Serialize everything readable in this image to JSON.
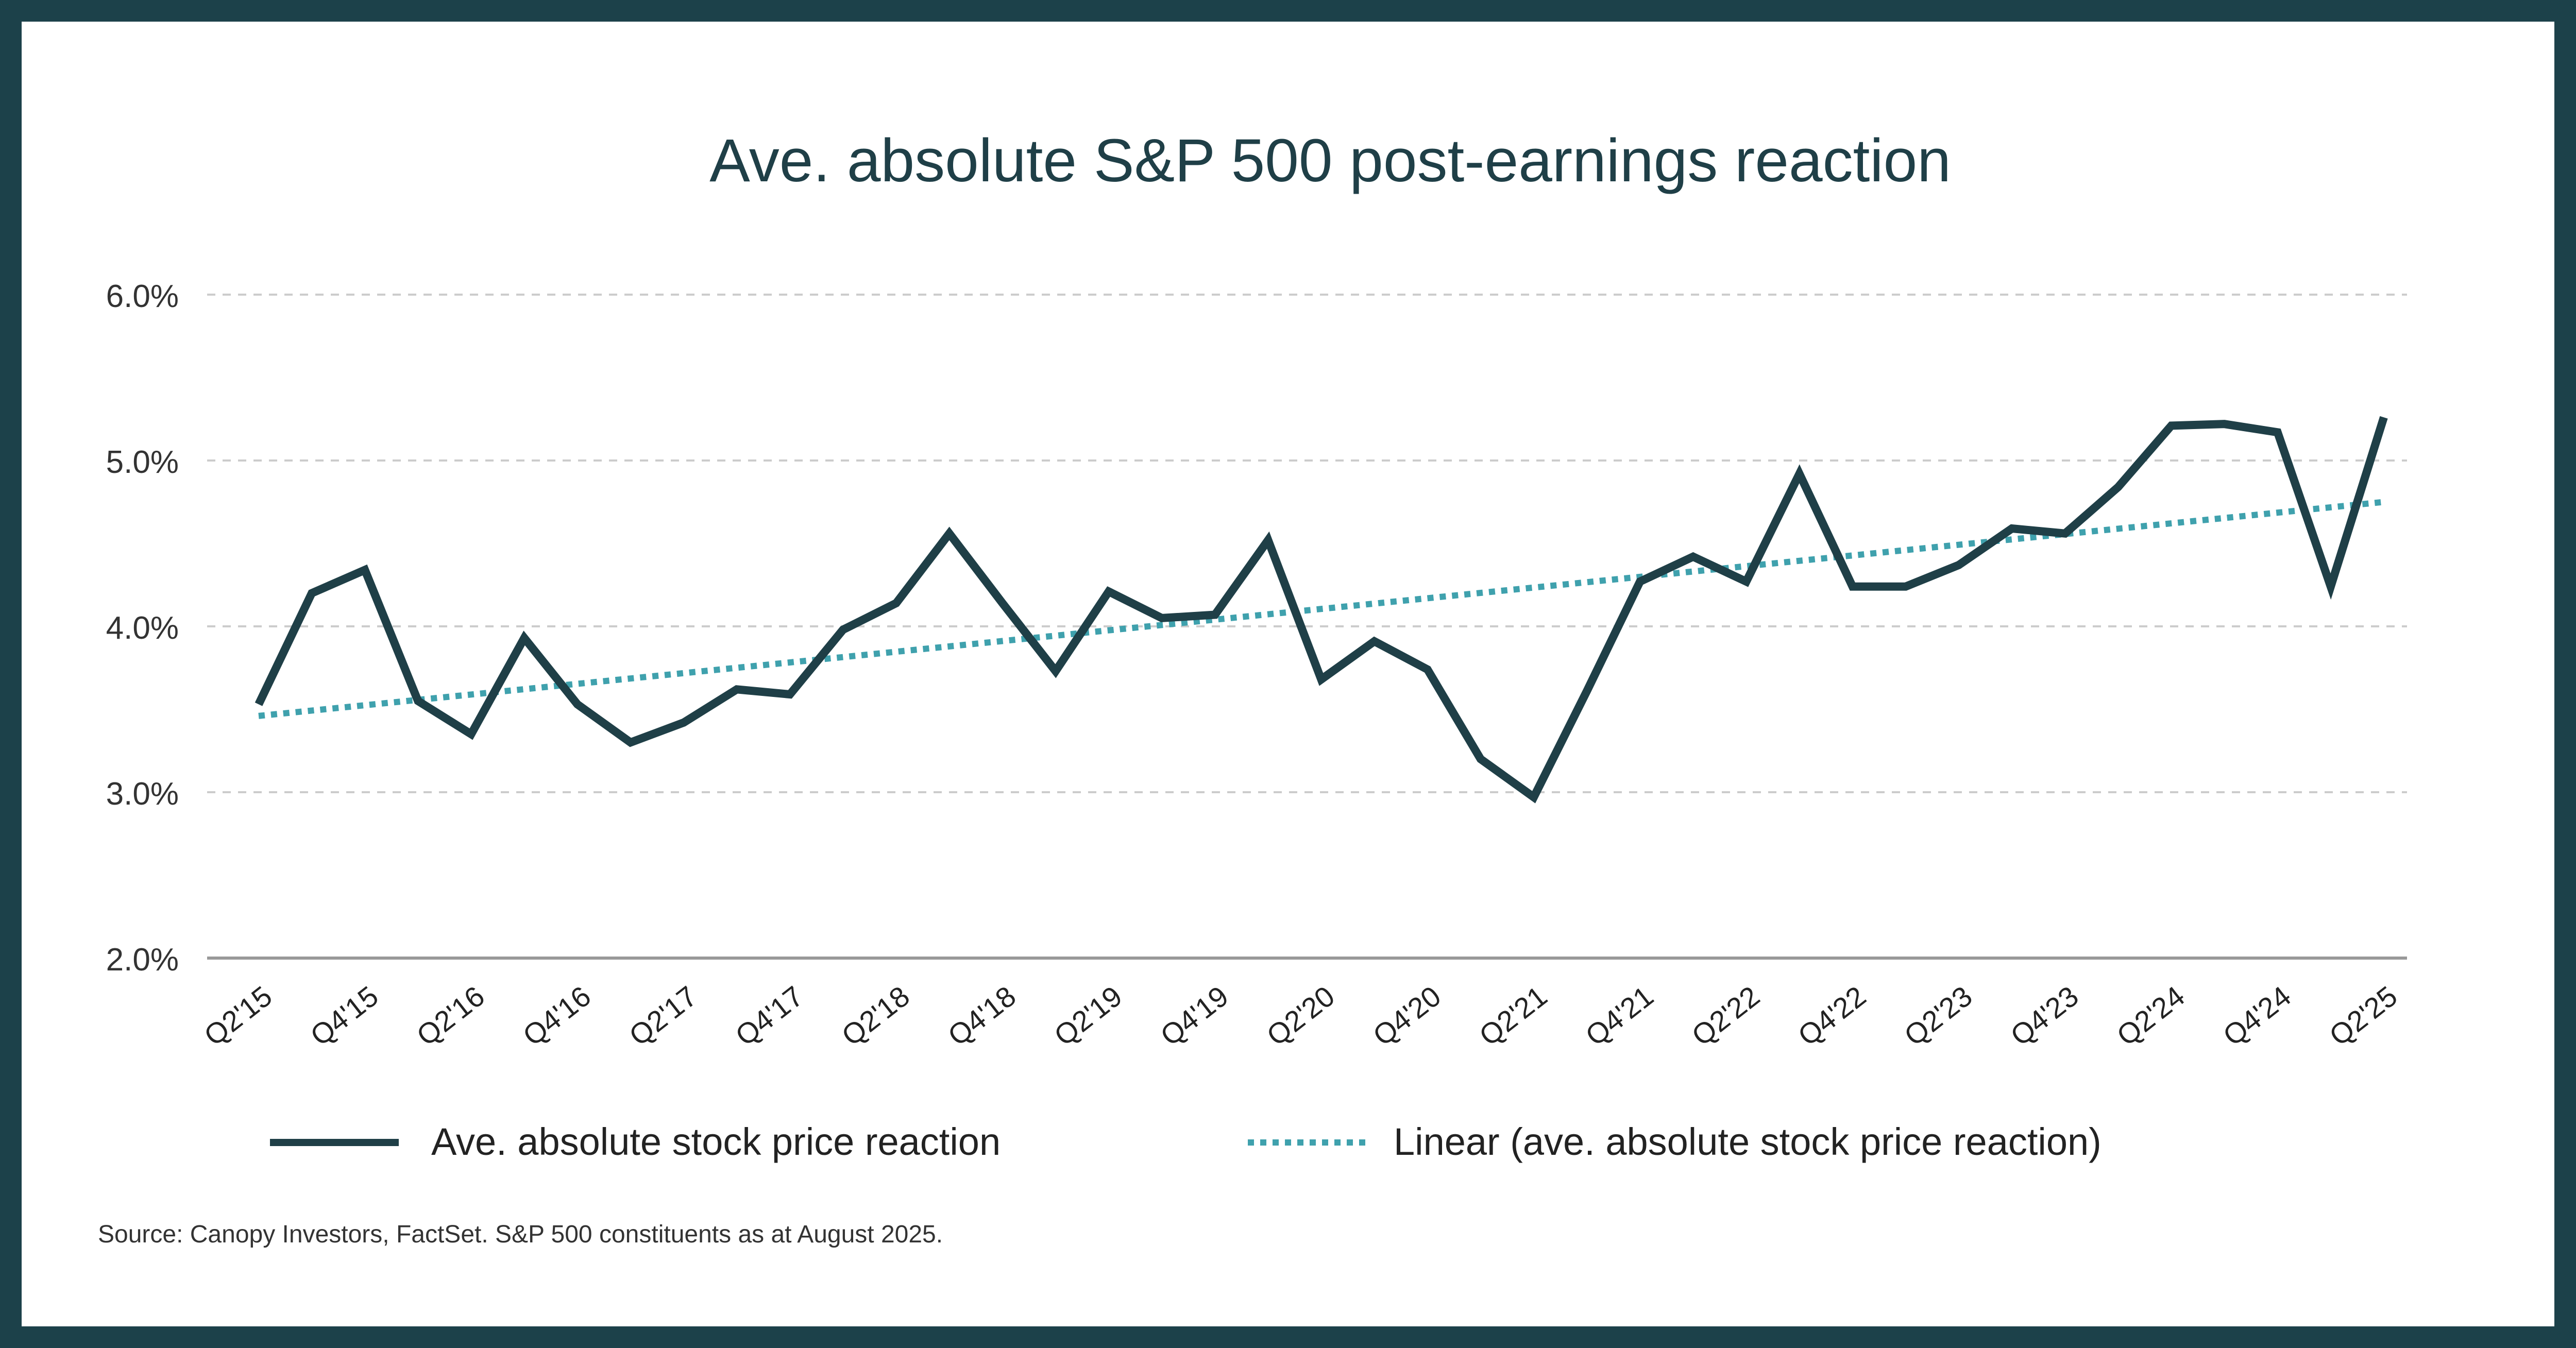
{
  "chart_data": {
    "type": "line",
    "title": "Ave. absolute S&P 500 post-earnings reaction",
    "xlabel": "",
    "ylabel": "",
    "ylim": [
      2.0,
      6.0
    ],
    "yticks": [
      "2.0%",
      "3.0%",
      "4.0%",
      "5.0%",
      "6.0%"
    ],
    "ytick_values": [
      2.0,
      3.0,
      4.0,
      5.0,
      6.0
    ],
    "grid": true,
    "legend_position": "bottom",
    "x": [
      "Q2'15",
      "Q3'15",
      "Q4'15",
      "Q1'16",
      "Q2'16",
      "Q3'16",
      "Q4'16",
      "Q1'17",
      "Q2'17",
      "Q3'17",
      "Q4'17",
      "Q1'18",
      "Q2'18",
      "Q3'18",
      "Q4'18",
      "Q1'19",
      "Q2'19",
      "Q3'19",
      "Q4'19",
      "Q1'20",
      "Q2'20",
      "Q3'20",
      "Q4'20",
      "Q1'21",
      "Q2'21",
      "Q3'21",
      "Q4'21",
      "Q1'22",
      "Q2'22",
      "Q3'22",
      "Q4'22",
      "Q1'23",
      "Q2'23",
      "Q3'23",
      "Q4'23",
      "Q1'24",
      "Q2'24",
      "Q3'24",
      "Q4'24",
      "Q1'25",
      "Q2'25"
    ],
    "x_tick_labels": [
      "Q2'15",
      "Q4'15",
      "Q2'16",
      "Q4'16",
      "Q2'17",
      "Q4'17",
      "Q2'18",
      "Q4'18",
      "Q2'19",
      "Q4'19",
      "Q2'20",
      "Q4'20",
      "Q2'21",
      "Q4'21",
      "Q2'22",
      "Q4'22",
      "Q2'23",
      "Q4'23",
      "Q2'24",
      "Q4'24",
      "Q2'25"
    ],
    "series": [
      {
        "name": "Ave. absolute stock price reaction",
        "color": "#1f3f47",
        "style": "solid",
        "values": [
          3.53,
          4.2,
          4.34,
          3.55,
          3.35,
          3.93,
          3.53,
          3.3,
          3.42,
          3.62,
          3.59,
          3.98,
          4.14,
          4.56,
          4.14,
          3.73,
          4.21,
          4.05,
          4.07,
          4.52,
          3.68,
          3.91,
          3.74,
          3.2,
          2.97,
          3.61,
          4.27,
          4.42,
          4.27,
          4.92,
          4.24,
          4.24,
          4.37,
          4.59,
          4.56,
          4.84,
          5.21,
          5.22,
          5.17,
          4.24,
          5.26
        ]
      },
      {
        "name": "Linear (ave. absolute stock price reaction)",
        "color": "#3fa1ad",
        "style": "dotted",
        "trend": [
          3.46,
          4.75
        ]
      }
    ]
  },
  "footer": {
    "source": "Source: Canopy Investors, FactSet. S&P 500 constituents as at August 2025."
  },
  "colors": {
    "frame": "#1c414a",
    "title": "#1f3f47",
    "axis_text": "#333333",
    "grid": "#cccccc",
    "baseline": "#999999"
  }
}
